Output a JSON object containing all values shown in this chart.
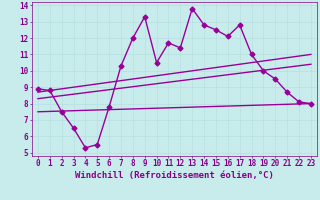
{
  "xlabel": "Windchill (Refroidissement éolien,°C)",
  "bg_color": "#c8ecec",
  "line_color": "#990099",
  "grid_color": "#b8e0e0",
  "text_color": "#880088",
  "xlim": [
    -0.5,
    23.5
  ],
  "ylim": [
    4.8,
    14.2
  ],
  "xticks": [
    0,
    1,
    2,
    3,
    4,
    5,
    6,
    7,
    8,
    9,
    10,
    11,
    12,
    13,
    14,
    15,
    16,
    17,
    18,
    19,
    20,
    21,
    22,
    23
  ],
  "yticks": [
    5,
    6,
    7,
    8,
    9,
    10,
    11,
    12,
    13,
    14
  ],
  "line1_x": [
    0,
    1,
    2,
    3,
    4,
    5,
    6,
    7,
    8,
    9,
    10,
    11,
    12,
    13,
    14,
    15,
    16,
    17,
    18,
    19,
    20,
    21,
    22,
    23
  ],
  "line1_y": [
    8.9,
    8.8,
    7.5,
    6.5,
    5.3,
    5.5,
    7.8,
    10.3,
    12.0,
    13.3,
    10.5,
    11.7,
    11.4,
    13.8,
    12.8,
    12.5,
    12.1,
    12.8,
    11.0,
    10.0,
    9.5,
    8.7,
    8.1,
    8.0
  ],
  "line2_x": [
    0,
    23
  ],
  "line2_y": [
    8.7,
    11.0
  ],
  "line3_x": [
    0,
    23
  ],
  "line3_y": [
    8.3,
    10.4
  ],
  "line4_x": [
    0,
    23
  ],
  "line4_y": [
    7.5,
    8.0
  ],
  "marker": "D",
  "marker_size": 2.5,
  "linewidth": 1.0,
  "tick_fontsize": 5.5,
  "label_fontsize": 6.5
}
